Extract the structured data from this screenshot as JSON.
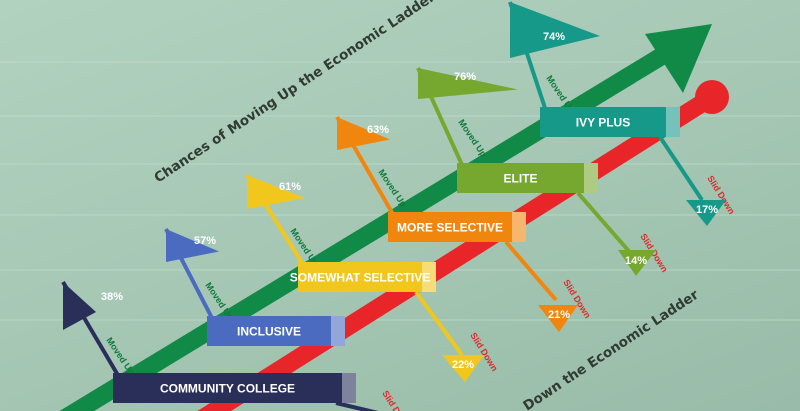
{
  "title_up": "Chances of Moving Up the Economic Ladder",
  "title_down": "Down the Economic Ladder",
  "moved_up_label": "Moved Up",
  "slid_down_label": "Slid Down",
  "tiers": [
    {
      "name": "COMMUNITY COLLEGE",
      "color": "#2a2f5a",
      "up_pct": "38%",
      "down_pct": ""
    },
    {
      "name": "INCLUSIVE",
      "color": "#4a6bbf",
      "up_pct": "57%",
      "down_pct": ""
    },
    {
      "name": "SOMEWHAT SELECTIVE",
      "color": "#f2c71d",
      "up_pct": "61%",
      "down_pct": "22%"
    },
    {
      "name": "MORE SELECTIVE",
      "color": "#f0860e",
      "up_pct": "63%",
      "down_pct": "21%"
    },
    {
      "name": "ELITE",
      "color": "#76a830",
      "up_pct": "76%",
      "down_pct": "14%"
    },
    {
      "name": "IVY PLUS",
      "color": "#17998a",
      "up_pct": "74%",
      "down_pct": "17%"
    }
  ],
  "colors": {
    "up_arrow": "#118a47",
    "down_arrow": "#e8262a",
    "moved_up_text": "#0e7a3c",
    "slid_down_text": "#e02a2a",
    "title": "#2f3b33"
  }
}
